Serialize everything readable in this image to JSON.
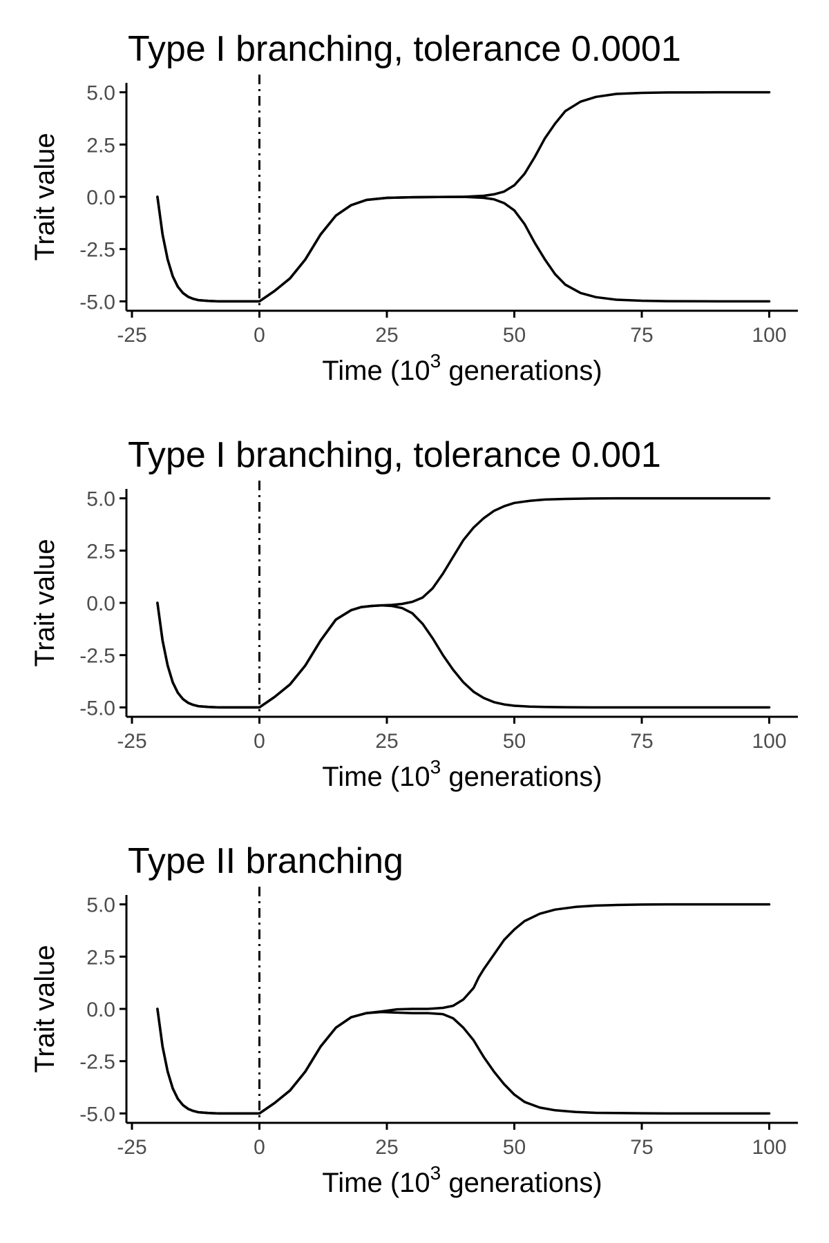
{
  "chart_data": [
    {
      "type": "line",
      "title": "Type I branching, tolerance 0.0001",
      "xlabel": "Time (10",
      "xlabel_superscript": "3",
      "xlabel_suffix": " generations)",
      "ylabel": "Trait value",
      "xlim": [
        -25,
        100
      ],
      "ylim": [
        -5,
        5
      ],
      "xticks": [
        -25,
        0,
        25,
        50,
        75,
        100
      ],
      "xtick_labels": [
        "-25",
        "0",
        "25",
        "50",
        "75",
        "100"
      ],
      "yticks": [
        -5,
        -2.5,
        0,
        2.5,
        5
      ],
      "ytick_labels": [
        "-5.0",
        "-2.5",
        "0.0",
        "2.5",
        "5.0"
      ],
      "reference_line_x": 0,
      "grid": false,
      "series": [
        {
          "x": [
            -20,
            -19,
            -18,
            -17,
            -16,
            -15,
            -14,
            -13,
            -12,
            -10,
            -8,
            -5,
            0,
            3,
            6,
            9,
            12,
            15,
            18,
            21,
            25,
            30,
            35,
            40,
            44,
            46,
            48,
            50,
            52,
            54,
            56,
            58,
            60,
            63,
            66,
            70,
            75,
            80,
            90,
            100
          ],
          "y": [
            0,
            -1.8,
            -3.0,
            -3.8,
            -4.3,
            -4.6,
            -4.78,
            -4.88,
            -4.94,
            -4.98,
            -5.0,
            -5.0,
            -5.0,
            -4.5,
            -3.9,
            -3.0,
            -1.8,
            -0.9,
            -0.4,
            -0.15,
            -0.05,
            -0.02,
            -0.01,
            0,
            0.05,
            0.12,
            0.25,
            0.55,
            1.1,
            1.9,
            2.8,
            3.5,
            4.1,
            4.55,
            4.78,
            4.92,
            4.97,
            4.99,
            5.0,
            5.0
          ]
        },
        {
          "x": [
            -20,
            -19,
            -18,
            -17,
            -16,
            -15,
            -14,
            -13,
            -12,
            -10,
            -8,
            -5,
            0,
            3,
            6,
            9,
            12,
            15,
            18,
            21,
            25,
            30,
            35,
            40,
            44,
            46,
            48,
            50,
            52,
            54,
            56,
            58,
            60,
            63,
            66,
            70,
            75,
            80,
            90,
            100
          ],
          "y": [
            0,
            -1.8,
            -3.0,
            -3.8,
            -4.3,
            -4.6,
            -4.78,
            -4.88,
            -4.94,
            -4.98,
            -5.0,
            -5.0,
            -5.0,
            -4.5,
            -3.9,
            -3.0,
            -1.8,
            -0.9,
            -0.4,
            -0.15,
            -0.05,
            -0.02,
            -0.01,
            0,
            -0.05,
            -0.12,
            -0.3,
            -0.65,
            -1.3,
            -2.2,
            -3.0,
            -3.7,
            -4.2,
            -4.6,
            -4.8,
            -4.92,
            -4.97,
            -4.99,
            -5.0,
            -5.0
          ]
        }
      ]
    },
    {
      "type": "line",
      "title": "Type I branching, tolerance 0.001",
      "xlabel": "Time (10",
      "xlabel_superscript": "3",
      "xlabel_suffix": " generations)",
      "ylabel": "Trait value",
      "xlim": [
        -25,
        100
      ],
      "ylim": [
        -5,
        5
      ],
      "xticks": [
        -25,
        0,
        25,
        50,
        75,
        100
      ],
      "xtick_labels": [
        "-25",
        "0",
        "25",
        "50",
        "75",
        "100"
      ],
      "yticks": [
        -5,
        -2.5,
        0,
        2.5,
        5
      ],
      "ytick_labels": [
        "-5.0",
        "-2.5",
        "0.0",
        "2.5",
        "5.0"
      ],
      "reference_line_x": 0,
      "grid": false,
      "series": [
        {
          "x": [
            -20,
            -19,
            -18,
            -17,
            -16,
            -15,
            -14,
            -13,
            -12,
            -10,
            -8,
            -5,
            0,
            3,
            6,
            9,
            12,
            15,
            18,
            20,
            22,
            24,
            26,
            28,
            30,
            32,
            34,
            36,
            38,
            40,
            42,
            44,
            46,
            48,
            50,
            53,
            56,
            60,
            65,
            70,
            80,
            100
          ],
          "y": [
            0,
            -1.8,
            -3.0,
            -3.8,
            -4.3,
            -4.6,
            -4.78,
            -4.88,
            -4.94,
            -4.98,
            -5.0,
            -5.0,
            -5.0,
            -4.5,
            -3.9,
            -3.0,
            -1.8,
            -0.8,
            -0.35,
            -0.2,
            -0.15,
            -0.12,
            -0.1,
            -0.05,
            0.05,
            0.25,
            0.7,
            1.4,
            2.2,
            3.0,
            3.6,
            4.05,
            4.4,
            4.62,
            4.78,
            4.88,
            4.94,
            4.97,
            4.99,
            5.0,
            5.0,
            5.0
          ]
        },
        {
          "x": [
            -20,
            -19,
            -18,
            -17,
            -16,
            -15,
            -14,
            -13,
            -12,
            -10,
            -8,
            -5,
            0,
            3,
            6,
            9,
            12,
            15,
            18,
            20,
            22,
            24,
            26,
            28,
            30,
            32,
            34,
            36,
            38,
            40,
            42,
            44,
            46,
            48,
            50,
            53,
            56,
            60,
            65,
            70,
            80,
            100
          ],
          "y": [
            0,
            -1.8,
            -3.0,
            -3.8,
            -4.3,
            -4.6,
            -4.78,
            -4.88,
            -4.94,
            -4.98,
            -5.0,
            -5.0,
            -5.0,
            -4.5,
            -3.9,
            -3.0,
            -1.8,
            -0.8,
            -0.35,
            -0.2,
            -0.15,
            -0.12,
            -0.15,
            -0.25,
            -0.5,
            -1.0,
            -1.7,
            -2.5,
            -3.2,
            -3.8,
            -4.25,
            -4.55,
            -4.75,
            -4.86,
            -4.92,
            -4.96,
            -4.98,
            -4.99,
            -5.0,
            -5.0,
            -5.0,
            -5.0
          ]
        }
      ]
    },
    {
      "type": "line",
      "title": "Type II branching",
      "xlabel": "Time (10",
      "xlabel_superscript": "3",
      "xlabel_suffix": " generations)",
      "ylabel": "Trait value",
      "xlim": [
        -25,
        100
      ],
      "ylim": [
        -5,
        5
      ],
      "xticks": [
        -25,
        0,
        25,
        50,
        75,
        100
      ],
      "xtick_labels": [
        "-25",
        "0",
        "25",
        "50",
        "75",
        "100"
      ],
      "yticks": [
        -5,
        -2.5,
        0,
        2.5,
        5
      ],
      "ytick_labels": [
        "-5.0",
        "-2.5",
        "0.0",
        "2.5",
        "5.0"
      ],
      "reference_line_x": 0,
      "grid": false,
      "series": [
        {
          "x": [
            -20,
            -19,
            -18,
            -17,
            -16,
            -15,
            -14,
            -13,
            -12,
            -10,
            -8,
            -5,
            0,
            3,
            6,
            9,
            12,
            15,
            18,
            21,
            24,
            27,
            30,
            33,
            36,
            38,
            40,
            42,
            43,
            44,
            46,
            48,
            50,
            52,
            55,
            58,
            62,
            66,
            70,
            75,
            80,
            90,
            100
          ],
          "y": [
            0,
            -1.8,
            -3.0,
            -3.8,
            -4.3,
            -4.6,
            -4.78,
            -4.88,
            -4.94,
            -4.98,
            -5.0,
            -5.0,
            -5.0,
            -4.5,
            -3.9,
            -3.0,
            -1.8,
            -0.9,
            -0.4,
            -0.2,
            -0.12,
            -0.02,
            0,
            0,
            0.05,
            0.15,
            0.45,
            1.0,
            1.5,
            1.9,
            2.6,
            3.3,
            3.8,
            4.2,
            4.55,
            4.75,
            4.88,
            4.94,
            4.97,
            4.99,
            5.0,
            5.0,
            5.0
          ]
        },
        {
          "x": [
            -20,
            -19,
            -18,
            -17,
            -16,
            -15,
            -14,
            -13,
            -12,
            -10,
            -8,
            -5,
            0,
            3,
            6,
            9,
            12,
            15,
            18,
            21,
            24,
            27,
            30,
            33,
            36,
            38,
            40,
            42,
            43,
            44,
            46,
            48,
            50,
            52,
            55,
            58,
            62,
            66,
            70,
            75,
            80,
            90,
            100
          ],
          "y": [
            0,
            -1.8,
            -3.0,
            -3.8,
            -4.3,
            -4.6,
            -4.78,
            -4.88,
            -4.94,
            -4.98,
            -5.0,
            -5.0,
            -5.0,
            -4.5,
            -3.9,
            -3.0,
            -1.8,
            -0.9,
            -0.4,
            -0.2,
            -0.15,
            -0.18,
            -0.2,
            -0.2,
            -0.25,
            -0.45,
            -0.9,
            -1.5,
            -1.9,
            -2.3,
            -3.0,
            -3.6,
            -4.1,
            -4.45,
            -4.72,
            -4.85,
            -4.93,
            -4.97,
            -4.98,
            -4.99,
            -5.0,
            -5.0,
            -5.0
          ]
        }
      ]
    }
  ]
}
